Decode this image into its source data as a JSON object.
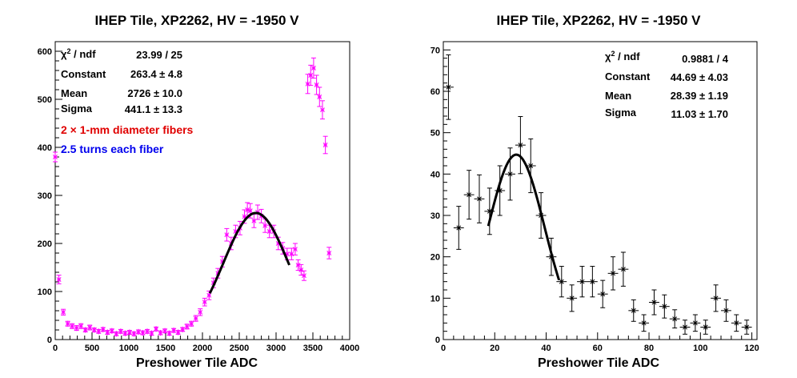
{
  "chart_data": [
    {
      "type": "scatter",
      "title": "IHEP Tile, XP2262, HV = -1950 V",
      "xlabel": "Preshower Tile ADC",
      "ylabel": "",
      "xlim": [
        0,
        4000
      ],
      "ylim": [
        0,
        620
      ],
      "xticks": [
        0,
        500,
        1000,
        1500,
        2000,
        2500,
        3000,
        3500,
        4000
      ],
      "yticks": [
        0,
        100,
        200,
        300,
        400,
        500,
        600
      ],
      "marker": "star",
      "color": "#ff00ff",
      "fit": {
        "type": "gaussian",
        "constant": 263.4,
        "mean": 2726,
        "sigma": 441.1,
        "x_range": [
          2100,
          3180
        ],
        "color": "#000000"
      },
      "stats": [
        {
          "label": "χ² / ndf",
          "value": "23.99 / 25"
        },
        {
          "label": "Constant",
          "value": "263.4 ± 4.8"
        },
        {
          "label": "Mean",
          "value": "2726 ± 10.0"
        },
        {
          "label": "Sigma",
          "value": "441.1 ± 13.3"
        }
      ],
      "annotations": [
        {
          "text": "2 × 1-mm diameter fibers",
          "color": "#e00000"
        },
        {
          "text": "2.5 turns each fiber",
          "color": "#0000ee"
        }
      ],
      "points": [
        {
          "x": 0,
          "y": 380,
          "err": 10
        },
        {
          "x": 50,
          "y": 125,
          "err": 9
        },
        {
          "x": 110,
          "y": 57,
          "err": 6
        },
        {
          "x": 170,
          "y": 33,
          "err": 5
        },
        {
          "x": 230,
          "y": 28,
          "err": 5
        },
        {
          "x": 290,
          "y": 24,
          "err": 5
        },
        {
          "x": 350,
          "y": 28,
          "err": 5
        },
        {
          "x": 410,
          "y": 20,
          "err": 4
        },
        {
          "x": 470,
          "y": 25,
          "err": 5
        },
        {
          "x": 530,
          "y": 20,
          "err": 4
        },
        {
          "x": 590,
          "y": 17,
          "err": 4
        },
        {
          "x": 650,
          "y": 21,
          "err": 4
        },
        {
          "x": 710,
          "y": 15,
          "err": 4
        },
        {
          "x": 770,
          "y": 18,
          "err": 4
        },
        {
          "x": 830,
          "y": 12,
          "err": 4
        },
        {
          "x": 890,
          "y": 17,
          "err": 4
        },
        {
          "x": 950,
          "y": 13,
          "err": 4
        },
        {
          "x": 1010,
          "y": 15,
          "err": 4
        },
        {
          "x": 1070,
          "y": 12,
          "err": 4
        },
        {
          "x": 1130,
          "y": 16,
          "err": 4
        },
        {
          "x": 1190,
          "y": 14,
          "err": 4
        },
        {
          "x": 1250,
          "y": 17,
          "err": 4
        },
        {
          "x": 1310,
          "y": 13,
          "err": 4
        },
        {
          "x": 1370,
          "y": 22,
          "err": 4
        },
        {
          "x": 1430,
          "y": 14,
          "err": 4
        },
        {
          "x": 1490,
          "y": 18,
          "err": 4
        },
        {
          "x": 1550,
          "y": 13,
          "err": 4
        },
        {
          "x": 1610,
          "y": 19,
          "err": 4
        },
        {
          "x": 1670,
          "y": 15,
          "err": 4
        },
        {
          "x": 1730,
          "y": 21,
          "err": 4
        },
        {
          "x": 1790,
          "y": 27,
          "err": 5
        },
        {
          "x": 1850,
          "y": 33,
          "err": 5
        },
        {
          "x": 1910,
          "y": 44,
          "err": 6
        },
        {
          "x": 1970,
          "y": 57,
          "err": 7
        },
        {
          "x": 2030,
          "y": 78,
          "err": 8
        },
        {
          "x": 2090,
          "y": 92,
          "err": 9
        },
        {
          "x": 2150,
          "y": 118,
          "err": 10
        },
        {
          "x": 2210,
          "y": 138,
          "err": 10
        },
        {
          "x": 2270,
          "y": 162,
          "err": 11
        },
        {
          "x": 2330,
          "y": 218,
          "err": 13
        },
        {
          "x": 2390,
          "y": 200,
          "err": 13
        },
        {
          "x": 2450,
          "y": 225,
          "err": 13
        },
        {
          "x": 2510,
          "y": 232,
          "err": 14
        },
        {
          "x": 2570,
          "y": 256,
          "err": 14
        },
        {
          "x": 2610,
          "y": 270,
          "err": 15
        },
        {
          "x": 2650,
          "y": 268,
          "err": 15
        },
        {
          "x": 2700,
          "y": 247,
          "err": 14
        },
        {
          "x": 2750,
          "y": 265,
          "err": 15
        },
        {
          "x": 2800,
          "y": 257,
          "err": 14
        },
        {
          "x": 2850,
          "y": 237,
          "err": 14
        },
        {
          "x": 2910,
          "y": 225,
          "err": 13
        },
        {
          "x": 2970,
          "y": 225,
          "err": 13
        },
        {
          "x": 3030,
          "y": 200,
          "err": 13
        },
        {
          "x": 3090,
          "y": 190,
          "err": 12
        },
        {
          "x": 3150,
          "y": 178,
          "err": 12
        },
        {
          "x": 3210,
          "y": 178,
          "err": 12
        },
        {
          "x": 3260,
          "y": 188,
          "err": 12
        },
        {
          "x": 3300,
          "y": 155,
          "err": 11
        },
        {
          "x": 3340,
          "y": 145,
          "err": 11
        },
        {
          "x": 3380,
          "y": 133,
          "err": 10
        },
        {
          "x": 3430,
          "y": 532,
          "err": 20
        },
        {
          "x": 3470,
          "y": 550,
          "err": 21
        },
        {
          "x": 3510,
          "y": 565,
          "err": 21
        },
        {
          "x": 3550,
          "y": 530,
          "err": 20
        },
        {
          "x": 3590,
          "y": 505,
          "err": 20
        },
        {
          "x": 3630,
          "y": 478,
          "err": 19
        },
        {
          "x": 3670,
          "y": 405,
          "err": 18
        },
        {
          "x": 3720,
          "y": 180,
          "err": 12
        }
      ]
    },
    {
      "type": "scatter",
      "title": "IHEP Tile, XP2262, HV = -1950 V",
      "xlabel": "Preshower Tile ADC",
      "ylabel": "",
      "xlim": [
        0,
        122
      ],
      "ylim": [
        0,
        72
      ],
      "xticks": [
        0,
        20,
        40,
        60,
        80,
        100,
        120
      ],
      "yticks": [
        0,
        10,
        20,
        30,
        40,
        50,
        60,
        70
      ],
      "marker": "star",
      "color": "#000000",
      "fit": {
        "type": "gaussian",
        "constant": 44.69,
        "mean": 28.39,
        "sigma": 11.03,
        "x_range": [
          17.5,
          45
        ],
        "color": "#000000"
      },
      "stats": [
        {
          "label": "χ² / ndf",
          "value": "0.9881 / 4"
        },
        {
          "label": "Constant",
          "value": "44.69 ± 4.03"
        },
        {
          "label": "Mean",
          "value": "28.39 ± 1.19"
        },
        {
          "label": "Sigma",
          "value": "11.03 ± 1.70"
        }
      ],
      "points": [
        {
          "x": 2,
          "y": 61,
          "err": 7.8
        },
        {
          "x": 6,
          "y": 27,
          "err": 5.2
        },
        {
          "x": 10,
          "y": 35,
          "err": 5.9
        },
        {
          "x": 14,
          "y": 34,
          "err": 5.8
        },
        {
          "x": 18,
          "y": 31,
          "err": 5.6
        },
        {
          "x": 22,
          "y": 36,
          "err": 6.0
        },
        {
          "x": 26,
          "y": 40,
          "err": 6.3
        },
        {
          "x": 30,
          "y": 47,
          "err": 6.9
        },
        {
          "x": 34,
          "y": 42,
          "err": 6.5
        },
        {
          "x": 38,
          "y": 30,
          "err": 5.5
        },
        {
          "x": 42,
          "y": 20,
          "err": 4.5
        },
        {
          "x": 46,
          "y": 14,
          "err": 3.7
        },
        {
          "x": 50,
          "y": 10,
          "err": 3.2
        },
        {
          "x": 54,
          "y": 14,
          "err": 3.7
        },
        {
          "x": 58,
          "y": 14,
          "err": 3.7
        },
        {
          "x": 62,
          "y": 11,
          "err": 3.3
        },
        {
          "x": 66,
          "y": 16,
          "err": 4.0
        },
        {
          "x": 70,
          "y": 17,
          "err": 4.1
        },
        {
          "x": 74,
          "y": 7,
          "err": 2.6
        },
        {
          "x": 78,
          "y": 4,
          "err": 2.0
        },
        {
          "x": 82,
          "y": 9,
          "err": 3.0
        },
        {
          "x": 86,
          "y": 8,
          "err": 2.8
        },
        {
          "x": 90,
          "y": 5,
          "err": 2.2
        },
        {
          "x": 94,
          "y": 3,
          "err": 1.7
        },
        {
          "x": 98,
          "y": 4,
          "err": 2.0
        },
        {
          "x": 102,
          "y": 3,
          "err": 1.7
        },
        {
          "x": 106,
          "y": 10,
          "err": 3.2
        },
        {
          "x": 110,
          "y": 7,
          "err": 2.6
        },
        {
          "x": 114,
          "y": 4,
          "err": 2.0
        },
        {
          "x": 118,
          "y": 3,
          "err": 1.7
        }
      ]
    }
  ]
}
